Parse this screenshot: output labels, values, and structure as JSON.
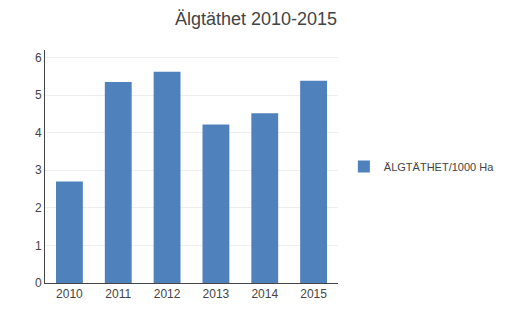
{
  "chart_data": {
    "type": "bar",
    "title": "Älgtäthet 2010-2015",
    "categories": [
      "2010",
      "2011",
      "2012",
      "2013",
      "2014",
      "2015"
    ],
    "series": [
      {
        "name": "ÄLGTÄTHET/1000 Ha",
        "color": "#4F81BD",
        "values": [
          2.7,
          5.35,
          5.62,
          4.22,
          4.52,
          5.38
        ]
      }
    ],
    "ylim": [
      0,
      6.2
    ],
    "yticks": [
      0,
      1,
      2,
      3,
      4,
      5,
      6
    ],
    "grid": true,
    "legend": "right"
  }
}
